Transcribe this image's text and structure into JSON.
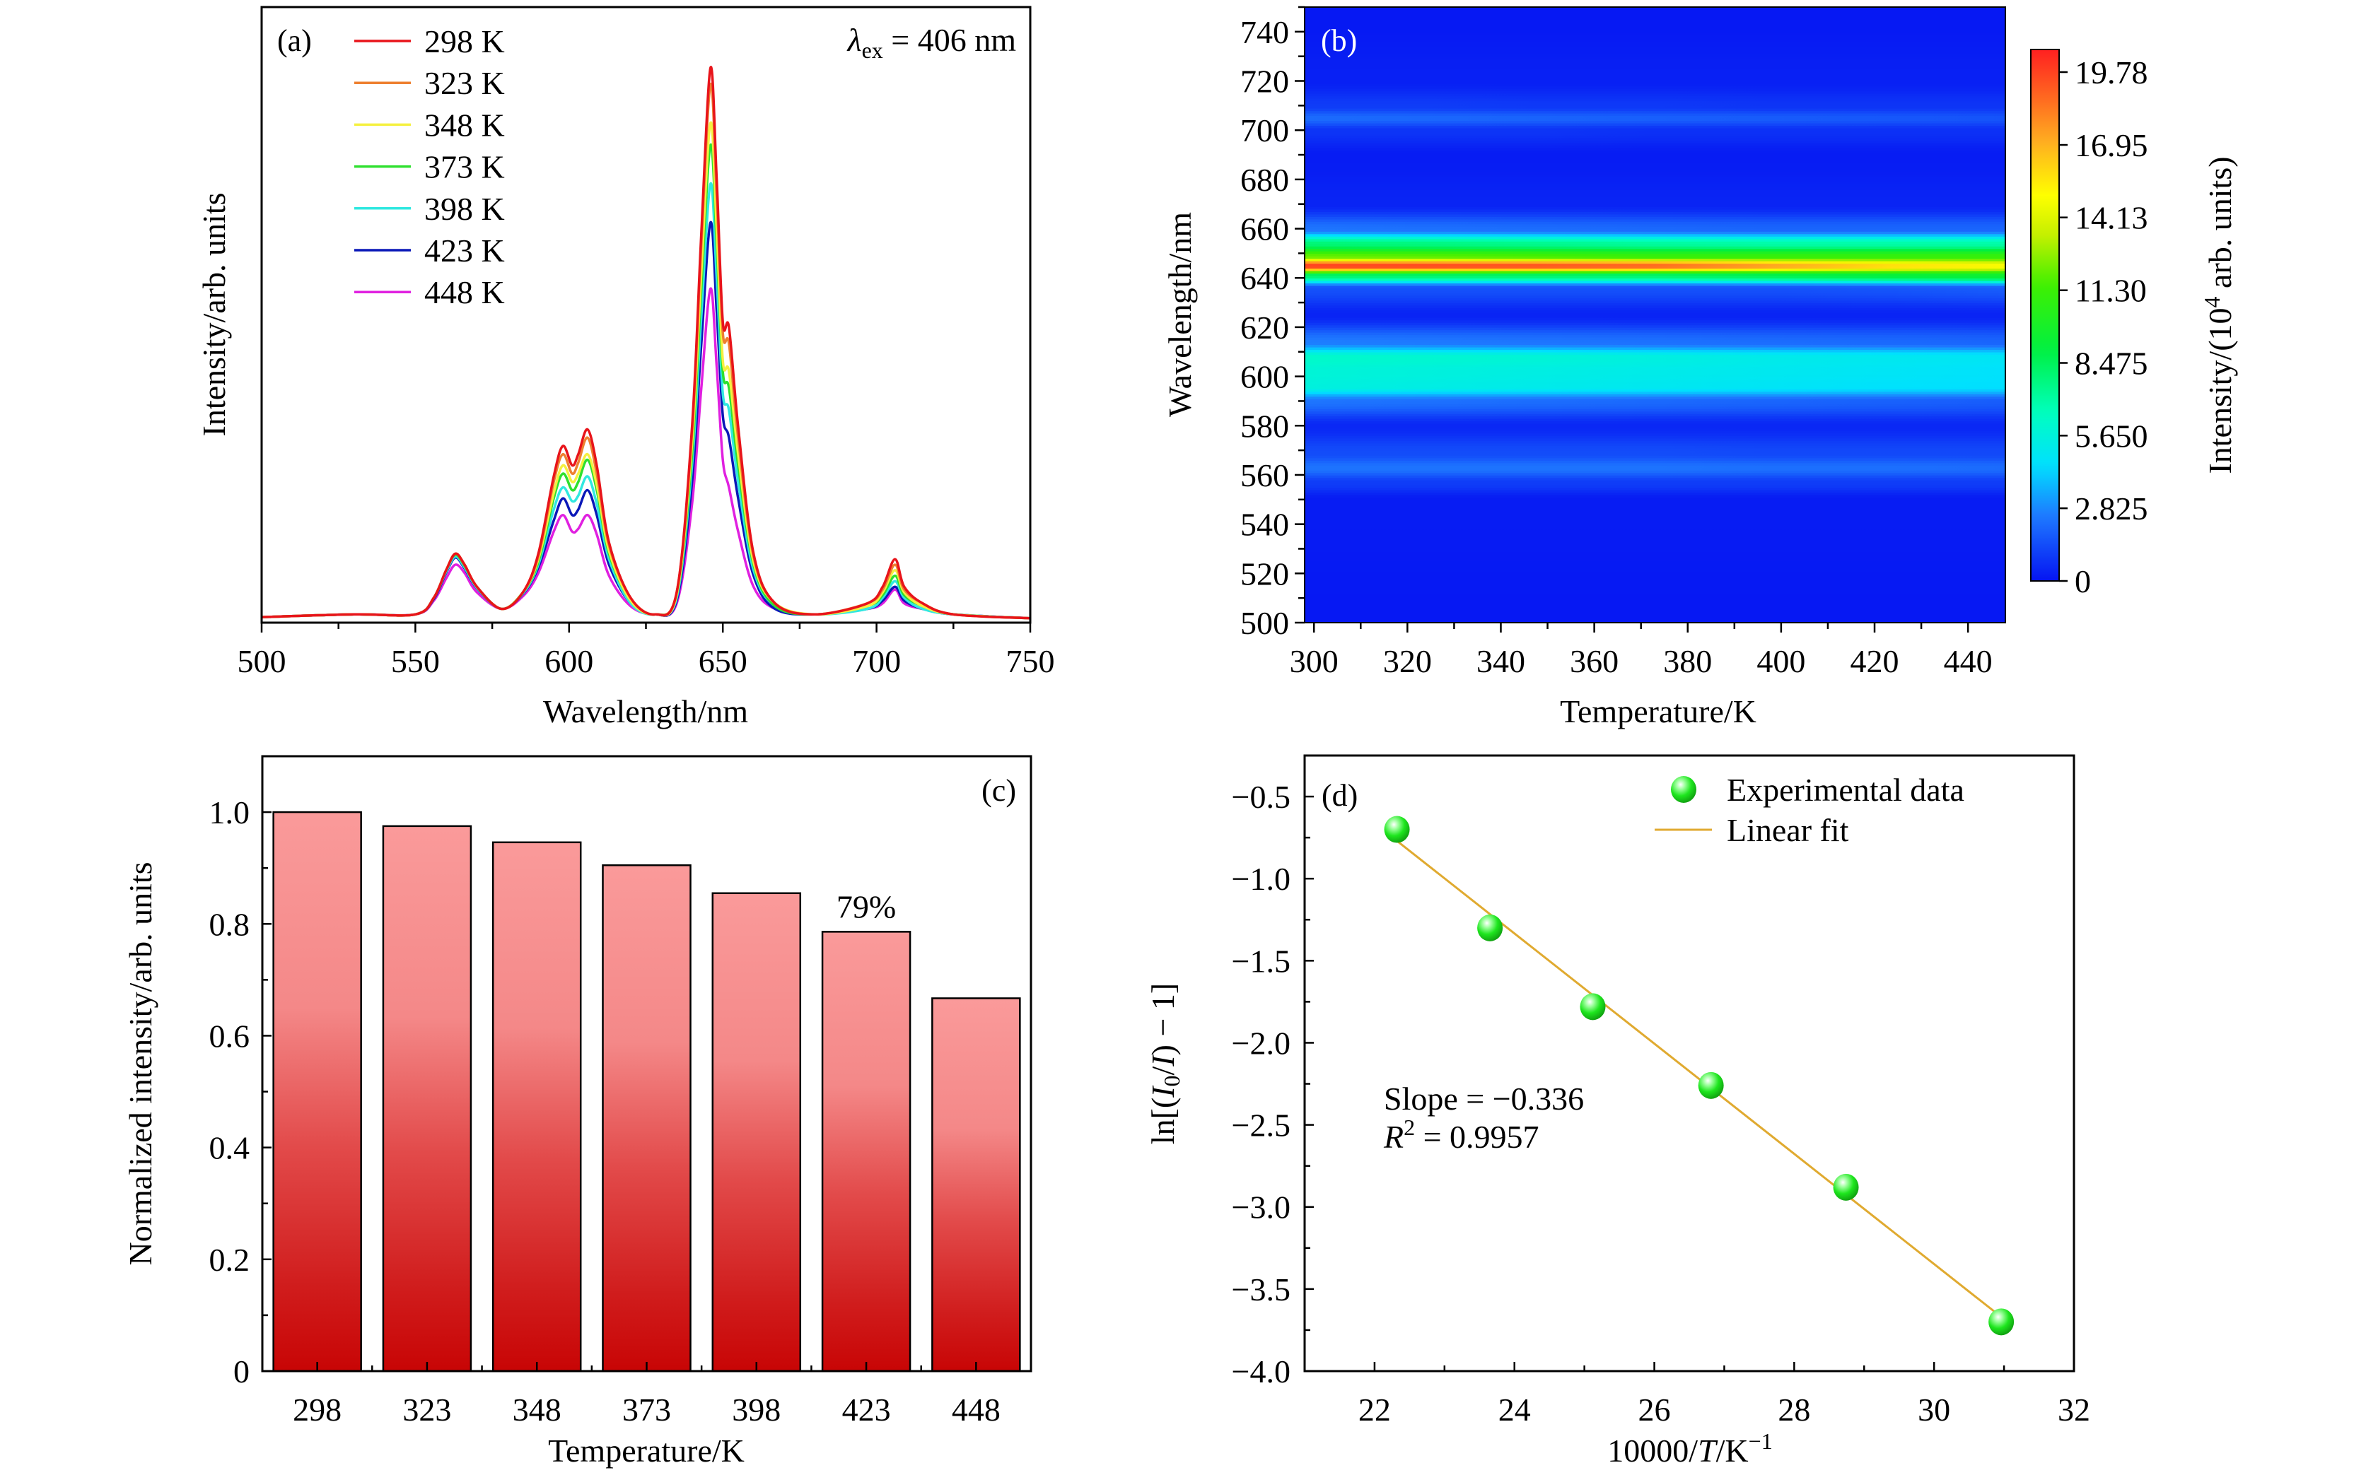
{
  "chart_data": [
    {
      "type": "line",
      "panel_label": "(a)",
      "annotation": {
        "symbol": "λ",
        "subscript": "ex",
        "rest": " = 406 nm"
      },
      "xlabel": "Wavelength/nm",
      "ylabel": "Intensity/arb. units",
      "xlim": [
        500,
        750
      ],
      "ylim": [
        -0.005,
        1.11
      ],
      "x_ticks": [
        500,
        550,
        600,
        650,
        700,
        750
      ],
      "x_tick_labels": [
        "500",
        "550",
        "600",
        "650",
        "700",
        "750"
      ],
      "legend_position": "top-left",
      "x": [
        500,
        530,
        550,
        556,
        560,
        563,
        566,
        570,
        578,
        585,
        590,
        595,
        598,
        601,
        603,
        606,
        609,
        613,
        620,
        628,
        635,
        640,
        643,
        646,
        648,
        650,
        652,
        655,
        660,
        667,
        680,
        697,
        702,
        706,
        709,
        715,
        725,
        750
      ],
      "series": [
        {
          "name": "298 K",
          "color": "#e8141a",
          "values": [
            0.005,
            0.01,
            0.01,
            0.04,
            0.09,
            0.12,
            0.1,
            0.06,
            0.02,
            0.05,
            0.12,
            0.26,
            0.315,
            0.28,
            0.3,
            0.345,
            0.28,
            0.14,
            0.04,
            0.01,
            0.05,
            0.35,
            0.7,
            1.0,
            0.8,
            0.54,
            0.53,
            0.35,
            0.12,
            0.03,
            0.01,
            0.03,
            0.06,
            0.11,
            0.06,
            0.03,
            0.01,
            0.003
          ]
        },
        {
          "name": "323 K",
          "color": "#ee8030",
          "values": [
            0.005,
            0.01,
            0.01,
            0.04,
            0.09,
            0.12,
            0.1,
            0.06,
            0.02,
            0.05,
            0.115,
            0.25,
            0.3,
            0.265,
            0.285,
            0.33,
            0.265,
            0.135,
            0.04,
            0.01,
            0.05,
            0.34,
            0.68,
            0.97,
            0.77,
            0.52,
            0.5,
            0.33,
            0.115,
            0.03,
            0.01,
            0.03,
            0.055,
            0.1,
            0.055,
            0.03,
            0.01,
            0.003
          ]
        },
        {
          "name": "348 K",
          "color": "#f5f040",
          "values": [
            0.005,
            0.01,
            0.01,
            0.04,
            0.09,
            0.12,
            0.1,
            0.06,
            0.02,
            0.05,
            0.11,
            0.23,
            0.28,
            0.25,
            0.265,
            0.3,
            0.245,
            0.125,
            0.035,
            0.01,
            0.045,
            0.32,
            0.63,
            0.9,
            0.71,
            0.47,
            0.45,
            0.3,
            0.105,
            0.03,
            0.01,
            0.025,
            0.05,
            0.09,
            0.05,
            0.025,
            0.01,
            0.003
          ]
        },
        {
          "name": "373 K",
          "color": "#2ee02e",
          "values": [
            0.005,
            0.01,
            0.01,
            0.04,
            0.09,
            0.118,
            0.098,
            0.06,
            0.02,
            0.05,
            0.105,
            0.22,
            0.265,
            0.235,
            0.25,
            0.29,
            0.235,
            0.12,
            0.035,
            0.01,
            0.045,
            0.3,
            0.6,
            0.86,
            0.68,
            0.45,
            0.42,
            0.28,
            0.1,
            0.025,
            0.01,
            0.025,
            0.045,
            0.08,
            0.045,
            0.025,
            0.01,
            0.003
          ]
        },
        {
          "name": "398 K",
          "color": "#30e8e0",
          "values": [
            0.005,
            0.01,
            0.01,
            0.04,
            0.087,
            0.115,
            0.095,
            0.058,
            0.02,
            0.048,
            0.1,
            0.2,
            0.24,
            0.215,
            0.225,
            0.26,
            0.21,
            0.11,
            0.03,
            0.01,
            0.04,
            0.28,
            0.55,
            0.79,
            0.62,
            0.41,
            0.38,
            0.25,
            0.09,
            0.025,
            0.01,
            0.02,
            0.04,
            0.07,
            0.04,
            0.02,
            0.01,
            0.003
          ]
        },
        {
          "name": "423 K",
          "color": "#0a18b8",
          "values": [
            0.005,
            0.01,
            0.01,
            0.038,
            0.085,
            0.113,
            0.093,
            0.057,
            0.02,
            0.047,
            0.095,
            0.18,
            0.22,
            0.19,
            0.2,
            0.235,
            0.19,
            0.1,
            0.03,
            0.01,
            0.035,
            0.25,
            0.5,
            0.72,
            0.56,
            0.37,
            0.33,
            0.22,
            0.08,
            0.02,
            0.01,
            0.02,
            0.035,
            0.06,
            0.035,
            0.02,
            0.01,
            0.003
          ]
        },
        {
          "name": "448 K",
          "color": "#e020e0",
          "values": [
            0.005,
            0.01,
            0.01,
            0.035,
            0.075,
            0.1,
            0.085,
            0.05,
            0.02,
            0.043,
            0.085,
            0.16,
            0.19,
            0.16,
            0.165,
            0.19,
            0.155,
            0.08,
            0.025,
            0.01,
            0.03,
            0.21,
            0.42,
            0.6,
            0.46,
            0.29,
            0.24,
            0.16,
            0.06,
            0.02,
            0.01,
            0.02,
            0.03,
            0.055,
            0.03,
            0.02,
            0.01,
            0.003
          ]
        }
      ]
    },
    {
      "type": "heatmap",
      "panel_label": "(b)",
      "xlabel": "Temperature/K",
      "ylabel": "Wavelength/nm",
      "xlim": [
        298,
        448
      ],
      "ylim": [
        500,
        750
      ],
      "x_ticks": [
        300,
        320,
        340,
        360,
        380,
        400,
        420,
        440
      ],
      "x_tick_labels": [
        "300",
        "320",
        "340",
        "360",
        "380",
        "400",
        "420",
        "440"
      ],
      "y_ticks": [
        500,
        520,
        540,
        560,
        580,
        600,
        620,
        640,
        660,
        680,
        700,
        720,
        740
      ],
      "y_tick_labels": [
        "500",
        "520",
        "540",
        "560",
        "580",
        "600",
        "620",
        "640",
        "660",
        "680",
        "700",
        "720",
        "740"
      ],
      "colorbar": {
        "label_prefix": "Intensity/(10",
        "label_exp": "4",
        "label_suffix": " arb. units)",
        "range": [
          0,
          20.66
        ],
        "ticks": [
          0,
          2.825,
          5.65,
          8.475,
          11.3,
          14.13,
          16.95,
          19.78
        ],
        "tick_labels": [
          "0",
          "2.825",
          "5.650",
          "8.475",
          "11.30",
          "14.13",
          "16.95",
          "19.78"
        ],
        "colormap": [
          [
            0,
            "#0514f2"
          ],
          [
            2.5,
            "#1e78ff"
          ],
          [
            4.5,
            "#00e0ff"
          ],
          [
            6.5,
            "#00ffc0"
          ],
          [
            9,
            "#00f040"
          ],
          [
            11.5,
            "#40f000"
          ],
          [
            13.5,
            "#c8f000"
          ],
          [
            15,
            "#ffff00"
          ],
          [
            17,
            "#ffb020"
          ],
          [
            19,
            "#ff6020"
          ],
          [
            20.66,
            "#ff2020"
          ]
        ]
      },
      "wavelengths": [
        500,
        550,
        557,
        563,
        569,
        580,
        590,
        596,
        602,
        608,
        614,
        625,
        636,
        641,
        645,
        649,
        654,
        660,
        670,
        690,
        700,
        705,
        710,
        720,
        750
      ],
      "columns": [
        {
          "temperature": 298,
          "z": [
            0.1,
            0.2,
            1.0,
            2.4,
            1.4,
            0.5,
            2.4,
            5.6,
            5.8,
            6.2,
            2.6,
            0.4,
            1.5,
            8,
            20,
            12,
            8,
            2.4,
            0.4,
            0.2,
            0.8,
            2.2,
            1.0,
            0.3,
            0.1
          ]
        },
        {
          "temperature": 323,
          "z": [
            0.1,
            0.2,
            1.0,
            2.4,
            1.4,
            0.5,
            2.3,
            5.4,
            5.6,
            6.0,
            2.5,
            0.4,
            1.5,
            8,
            19.8,
            11.8,
            7.8,
            2.3,
            0.4,
            0.2,
            0.8,
            2.1,
            1.0,
            0.3,
            0.1
          ]
        },
        {
          "temperature": 348,
          "z": [
            0.1,
            0.2,
            1.0,
            2.4,
            1.4,
            0.5,
            2.2,
            5.2,
            5.4,
            5.8,
            2.4,
            0.4,
            1.5,
            8,
            19.5,
            11.5,
            7.5,
            2.2,
            0.4,
            0.2,
            0.8,
            2.0,
            0.9,
            0.3,
            0.1
          ]
        },
        {
          "temperature": 373,
          "z": [
            0.1,
            0.2,
            1.0,
            2.4,
            1.4,
            0.5,
            2.1,
            5.0,
            5.2,
            5.5,
            2.3,
            0.4,
            1.5,
            8,
            19,
            11,
            7.2,
            2.1,
            0.4,
            0.2,
            0.7,
            1.9,
            0.9,
            0.3,
            0.1
          ]
        },
        {
          "temperature": 398,
          "z": [
            0.1,
            0.2,
            1.0,
            2.3,
            1.3,
            0.5,
            2.0,
            4.8,
            5.0,
            5.2,
            2.2,
            0.4,
            1.5,
            8.5,
            17.5,
            11,
            7,
            2.0,
            0.4,
            0.2,
            0.7,
            1.8,
            0.8,
            0.3,
            0.1
          ]
        },
        {
          "temperature": 423,
          "z": [
            0.1,
            0.2,
            1.0,
            2.3,
            1.3,
            0.5,
            1.9,
            4.6,
            4.8,
            5.0,
            2.1,
            0.4,
            1.6,
            9,
            16,
            11,
            7,
            2.0,
            0.4,
            0.2,
            0.7,
            1.7,
            0.8,
            0.3,
            0.1
          ]
        },
        {
          "temperature": 448,
          "z": [
            0.1,
            0.2,
            1.0,
            2.2,
            1.3,
            0.5,
            1.8,
            4.5,
            4.6,
            4.8,
            2.0,
            0.4,
            1.8,
            9.5,
            15,
            11,
            7,
            2.0,
            0.4,
            0.2,
            0.7,
            1.6,
            0.8,
            0.3,
            0.1
          ]
        }
      ]
    },
    {
      "type": "bar",
      "panel_label": "(c)",
      "xlabel": "Temperature/K",
      "ylabel": "Normalized intensity/arb. units",
      "ylim": [
        0,
        1.1
      ],
      "categories": [
        "298",
        "323",
        "348",
        "373",
        "398",
        "423",
        "448"
      ],
      "values": [
        1.0,
        0.975,
        0.946,
        0.905,
        0.855,
        0.786,
        0.667
      ],
      "bar_colors": {
        "top": "#fa9a9a",
        "bottom": "#c80505"
      },
      "y_ticks": [
        0,
        0.2,
        0.4,
        0.6,
        0.8,
        1.0
      ],
      "y_tick_labels": [
        "0",
        "0.2",
        "0.4",
        "0.6",
        "0.8",
        "1.0"
      ],
      "annotation": {
        "text": "79%",
        "category": "423"
      }
    },
    {
      "type": "scatter",
      "panel_label": "(d)",
      "xlabel_parts": {
        "a": "10000/",
        "T": "T",
        "b": "/K",
        "sup": "−1"
      },
      "ylabel_parts": {
        "a": "ln[(",
        "I0": "I",
        "sub": "0",
        "b": "/",
        "I": "I",
        "c": ") − 1]"
      },
      "xlim": [
        21,
        32
      ],
      "ylim": [
        -4.0,
        -0.25
      ],
      "x_ticks": [
        22,
        24,
        26,
        28,
        30,
        32
      ],
      "x_tick_labels": [
        "22",
        "24",
        "26",
        "28",
        "30",
        "32"
      ],
      "y_ticks": [
        -0.5,
        -1.0,
        -1.5,
        -2.0,
        -2.5,
        -3.0,
        -3.5,
        -4.0
      ],
      "y_tick_labels": [
        "−0.5",
        "−1.0",
        "−1.5",
        "−2.0",
        "−2.5",
        "−3.0",
        "−3.5",
        "−4.0"
      ],
      "series": [
        {
          "name": "Experimental data",
          "color": "#1ee61e",
          "x": [
            22.32,
            23.65,
            25.12,
            26.81,
            28.74,
            30.96
          ],
          "y": [
            -0.7,
            -1.3,
            -1.78,
            -2.26,
            -2.88,
            -3.7
          ]
        }
      ],
      "fit": {
        "name": "Linear fit",
        "color": "#e0aa30",
        "x": [
          22.32,
          30.96
        ],
        "y": [
          -0.77,
          -3.67
        ]
      },
      "legend_position": "top-right",
      "slope_text": {
        "label": "Slope = ",
        "value": "−0.336"
      },
      "r2_text": {
        "R": "R",
        "sup": "2",
        "rest": " = 0.9957"
      }
    }
  ]
}
